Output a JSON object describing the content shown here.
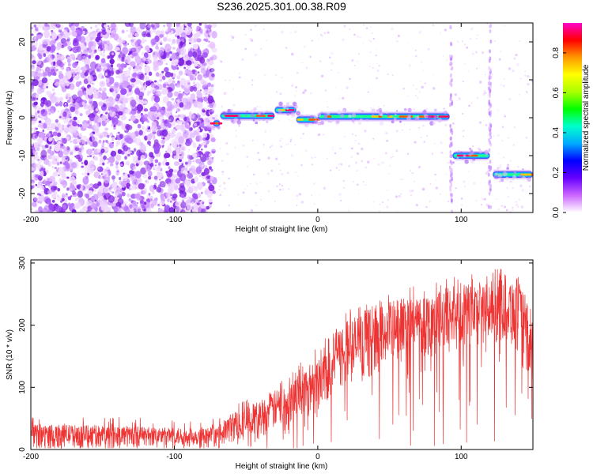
{
  "title": "S236.2025.301.00.38.R09",
  "colors": {
    "snr_line": "#ee3333",
    "scatter": "#8a2be2",
    "frame": "#000000"
  },
  "chart_data": [
    {
      "type": "heatmap",
      "xlabel": "Height of straight line (km)",
      "ylabel": "Frequency (Hz)",
      "xlim": [
        -200,
        150
      ],
      "ylim": [
        -25,
        25
      ],
      "xticks": [
        -200,
        -100,
        0,
        100
      ],
      "yticks": [
        -20,
        -10,
        0,
        10,
        20
      ],
      "colorbar": {
        "label": "Normalized spectral amplitude",
        "range": [
          0,
          0.95
        ],
        "ticks": [
          0.0,
          0.2,
          0.4,
          0.6,
          0.8
        ],
        "tick_labels": [
          "0.0",
          "0.2",
          "0.4",
          "0.6",
          "0.8"
        ],
        "colormap": [
          "#ffffff",
          "#cc66ff",
          "#6600ff",
          "#0000ff",
          "#00aaff",
          "#00ffcc",
          "#00ff00",
          "#aaff00",
          "#ffff00",
          "#ff9900",
          "#ff0000",
          "#ff00cc"
        ]
      },
      "noise_region": {
        "x_range": [
          -200,
          -72
        ],
        "y_range": [
          -25,
          25
        ]
      },
      "tracks": [
        {
          "x_range": [
            -73,
            -68
          ],
          "frequency": -1.5
        },
        {
          "x_range": [
            -68,
            -30
          ],
          "frequency": 0.5
        },
        {
          "x_range": [
            -30,
            -15
          ],
          "frequency": 2.0
        },
        {
          "x_range": [
            -15,
            0
          ],
          "frequency": -0.5
        },
        {
          "x_range": [
            0,
            92
          ],
          "frequency": 0.3
        },
        {
          "x_range": [
            94,
            120
          ],
          "frequency": -10.0
        },
        {
          "x_range": [
            122,
            150
          ],
          "frequency": -15.0
        }
      ],
      "vertical_streaks": [
        93,
        120
      ]
    },
    {
      "type": "line",
      "xlabel": "Height of straight line (km)",
      "ylabel": "SNR (10 * v/v)",
      "xlim": [
        -200,
        150
      ],
      "ylim": [
        0,
        305
      ],
      "xticks": [
        -200,
        -100,
        0,
        100
      ],
      "yticks": [
        0,
        100,
        200,
        300
      ],
      "envelope": {
        "x": [
          -200,
          -150,
          -100,
          -70,
          -60,
          -40,
          -20,
          0,
          10,
          20,
          40,
          60,
          80,
          100,
          120,
          130,
          140,
          145,
          150
        ],
        "lower": [
          5,
          5,
          5,
          5,
          10,
          20,
          40,
          60,
          80,
          100,
          120,
          140,
          150,
          160,
          170,
          170,
          150,
          110,
          80
        ],
        "upper": [
          40,
          40,
          35,
          35,
          60,
          80,
          110,
          150,
          185,
          210,
          230,
          245,
          255,
          265,
          270,
          285,
          275,
          240,
          220
        ]
      }
    }
  ]
}
